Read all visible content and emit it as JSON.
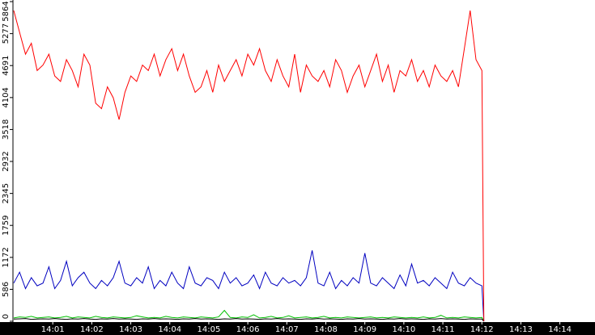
{
  "chart_data": {
    "type": "line",
    "x": [
      0,
      0.15,
      0.3,
      0.45,
      0.6,
      0.75,
      0.9,
      1.05,
      1.2,
      1.35,
      1.5,
      1.65,
      1.8,
      1.95,
      2.1,
      2.25,
      2.4,
      2.55,
      2.7,
      2.85,
      3,
      3.15,
      3.3,
      3.45,
      3.6,
      3.75,
      3.9,
      4.05,
      4.2,
      4.35,
      4.5,
      4.65,
      4.8,
      4.95,
      5.1,
      5.25,
      5.4,
      5.55,
      5.7,
      5.85,
      6,
      6.15,
      6.3,
      6.45,
      6.6,
      6.75,
      6.9,
      7.05,
      7.2,
      7.35,
      7.5,
      7.65,
      7.8,
      7.95,
      8.1,
      8.25,
      8.4,
      8.55,
      8.7,
      8.85,
      9,
      9.15,
      9.3,
      9.45,
      9.6,
      9.75,
      9.9,
      10.05,
      10.2,
      10.35,
      10.5,
      10.65,
      10.8,
      10.95,
      11.1,
      11.25,
      11.4,
      11.55,
      11.7,
      11.85,
      12,
      12.05
    ],
    "xlim": [
      0,
      14.9
    ],
    "xticks": [
      {
        "value": 1,
        "label": "14:01"
      },
      {
        "value": 2,
        "label": "14:02"
      },
      {
        "value": 3,
        "label": "14:03"
      },
      {
        "value": 4,
        "label": "14:04"
      },
      {
        "value": 5,
        "label": "14:05"
      },
      {
        "value": 6,
        "label": "14:06"
      },
      {
        "value": 7,
        "label": "14:07"
      },
      {
        "value": 8,
        "label": "14:08"
      },
      {
        "value": 9,
        "label": "14:09"
      },
      {
        "value": 10,
        "label": "14:10"
      },
      {
        "value": 11,
        "label": "14:11"
      },
      {
        "value": 12,
        "label": "14:12"
      },
      {
        "value": 13,
        "label": "14:13"
      },
      {
        "value": 14,
        "label": "14:14"
      }
    ],
    "ylim": [
      0,
      5864
    ],
    "yticks": [
      0,
      586,
      1172,
      1759,
      2345,
      2932,
      3518,
      4104,
      4691,
      5277,
      5864
    ],
    "series": [
      {
        "color": "#00c000",
        "values": [
          60,
          80,
          70,
          90,
          60,
          70,
          80,
          60,
          70,
          90,
          60,
          80,
          70,
          60,
          90,
          70,
          60,
          80,
          70,
          60,
          70,
          100,
          80,
          60,
          70,
          60,
          90,
          70,
          60,
          80,
          70,
          60,
          80,
          70,
          60,
          80,
          200,
          70,
          60,
          80,
          70,
          120,
          60,
          70,
          90,
          60,
          70,
          100,
          60,
          70,
          80,
          60,
          70,
          90,
          60,
          70,
          60,
          80,
          70,
          60,
          70,
          80,
          60,
          70,
          60,
          80,
          70,
          60,
          70,
          60,
          80,
          60,
          70,
          110,
          60,
          70,
          60,
          80,
          70,
          60,
          70,
          0
        ]
      },
      {
        "color": "#000000",
        "values": [
          40,
          45,
          50,
          35,
          40,
          45,
          40,
          50,
          40,
          35,
          45,
          40,
          50,
          40,
          35,
          45,
          40,
          50,
          40,
          45,
          40,
          35,
          45,
          40,
          50,
          40,
          45,
          40,
          35,
          45,
          40,
          50,
          40,
          45,
          40,
          35,
          45,
          40,
          50,
          40,
          45,
          40,
          35,
          45,
          40,
          50,
          40,
          45,
          40,
          35,
          45,
          40,
          50,
          40,
          45,
          40,
          35,
          45,
          40,
          50,
          40,
          45,
          40,
          35,
          45,
          40,
          50,
          40,
          45,
          40,
          35,
          45,
          40,
          50,
          40,
          45,
          40,
          35,
          45,
          40,
          40,
          0
        ]
      },
      {
        "color": "#0000c0",
        "values": [
          700,
          900,
          600,
          800,
          650,
          700,
          1000,
          600,
          750,
          1100,
          650,
          800,
          900,
          700,
          600,
          750,
          650,
          800,
          1100,
          700,
          650,
          800,
          700,
          1000,
          600,
          750,
          650,
          900,
          700,
          600,
          1000,
          700,
          650,
          800,
          750,
          600,
          900,
          700,
          800,
          650,
          700,
          850,
          600,
          900,
          700,
          650,
          800,
          700,
          750,
          650,
          800,
          1300,
          700,
          650,
          900,
          600,
          750,
          650,
          800,
          700,
          1250,
          700,
          650,
          800,
          700,
          600,
          850,
          650,
          1050,
          700,
          750,
          650,
          800,
          700,
          600,
          900,
          700,
          650,
          800,
          700,
          650,
          0
        ]
      },
      {
        "color": "#ff0000",
        "values": [
          5700,
          5300,
          4900,
          5100,
          4600,
          4700,
          4900,
          4500,
          4400,
          4800,
          4600,
          4300,
          4900,
          4700,
          4000,
          3900,
          4300,
          4100,
          3700,
          4200,
          4500,
          4400,
          4700,
          4600,
          4900,
          4500,
          4800,
          5000,
          4600,
          4900,
          4500,
          4200,
          4300,
          4600,
          4200,
          4700,
          4400,
          4600,
          4800,
          4500,
          4900,
          4700,
          5000,
          4600,
          4400,
          4800,
          4500,
          4300,
          4900,
          4200,
          4700,
          4500,
          4400,
          4600,
          4300,
          4800,
          4600,
          4200,
          4500,
          4700,
          4300,
          4600,
          4900,
          4400,
          4700,
          4200,
          4600,
          4500,
          4800,
          4400,
          4600,
          4300,
          4700,
          4500,
          4400,
          4600,
          4300,
          5000,
          5700,
          4800,
          4600,
          0
        ]
      }
    ]
  }
}
